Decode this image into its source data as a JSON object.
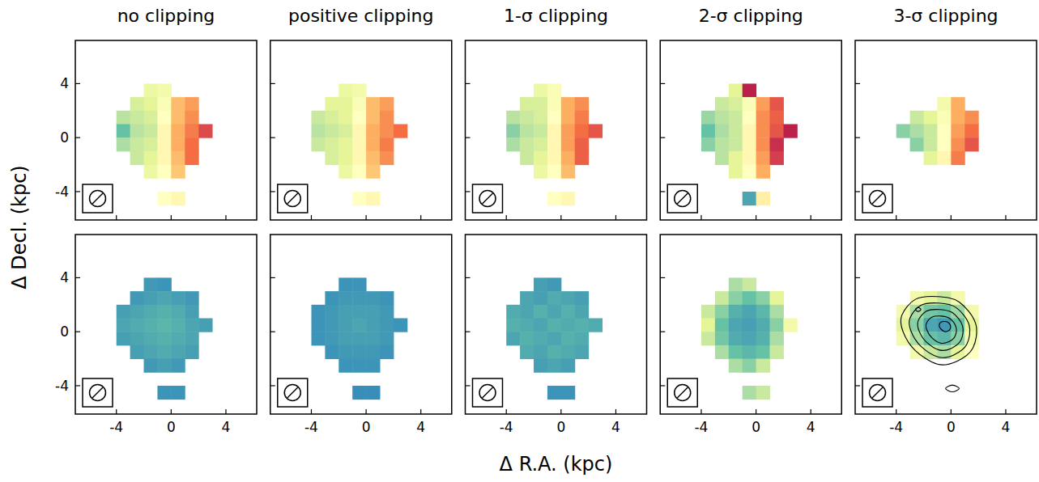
{
  "chart_data": {
    "type": "heatmap",
    "xlabel": "Δ R.A. (kpc)",
    "ylabel": "Δ Decl. (kpc)",
    "columns": [
      "no clipping",
      "positive clipping",
      "1-σ clipping",
      "2-σ clipping",
      "3-σ clipping"
    ],
    "xlim": [
      -7,
      6.25
    ],
    "ylim": [
      -6.1,
      7.2
    ],
    "xticks": [
      -4,
      0,
      4
    ],
    "yticks": [
      -4,
      0,
      4
    ],
    "x": [
      -3.5,
      -2.5,
      -1.5,
      -0.5,
      0.5,
      1.5,
      2.5
    ],
    "y": [
      3.5,
      2.5,
      1.5,
      0.5,
      -0.5,
      -1.5,
      -2.5,
      -3.5,
      -4.5
    ],
    "panels": [
      {
        "color_range": [
          -1,
          1
        ],
        "cells": [
          [
            null,
            null,
            -0.15,
            -0.1,
            null,
            null,
            null
          ],
          [
            null,
            -0.25,
            -0.2,
            -0.05,
            0.35,
            0.45,
            null
          ],
          [
            -0.35,
            -0.3,
            -0.25,
            0.0,
            0.35,
            0.5,
            null
          ],
          [
            -0.6,
            -0.35,
            -0.3,
            0.05,
            0.4,
            0.55,
            0.75
          ],
          [
            -0.4,
            -0.3,
            -0.25,
            0.05,
            0.4,
            0.6,
            null
          ],
          [
            null,
            -0.3,
            -0.2,
            0.05,
            0.35,
            0.6,
            null
          ],
          [
            null,
            null,
            -0.15,
            0.0,
            0.3,
            null,
            null
          ],
          [
            null,
            null,
            null,
            null,
            null,
            null,
            null
          ],
          [
            null,
            null,
            null,
            0.0,
            0.05,
            null,
            null
          ]
        ]
      },
      {
        "color_range": [
          -1,
          1
        ],
        "cells": [
          [
            null,
            null,
            -0.15,
            -0.1,
            null,
            null,
            null
          ],
          [
            null,
            -0.2,
            -0.2,
            -0.05,
            0.35,
            0.45,
            null
          ],
          [
            -0.3,
            -0.25,
            -0.2,
            0.0,
            0.35,
            0.5,
            null
          ],
          [
            -0.35,
            -0.3,
            -0.25,
            0.05,
            0.4,
            0.5,
            0.6
          ],
          [
            -0.3,
            -0.25,
            -0.2,
            0.05,
            0.4,
            0.55,
            null
          ],
          [
            null,
            -0.25,
            -0.2,
            0.05,
            0.35,
            0.5,
            null
          ],
          [
            null,
            null,
            -0.15,
            0.0,
            0.3,
            null,
            null
          ],
          [
            null,
            null,
            null,
            null,
            null,
            null,
            null
          ],
          [
            null,
            null,
            null,
            0.0,
            0.05,
            null,
            null
          ]
        ]
      },
      {
        "color_range": [
          -1,
          1
        ],
        "cells": [
          [
            null,
            null,
            -0.15,
            -0.05,
            null,
            null,
            null
          ],
          [
            null,
            -0.25,
            -0.25,
            -0.05,
            0.4,
            0.5,
            null
          ],
          [
            -0.35,
            -0.3,
            -0.25,
            0.0,
            0.4,
            0.55,
            null
          ],
          [
            -0.5,
            -0.35,
            -0.3,
            0.05,
            0.45,
            0.6,
            0.7
          ],
          [
            -0.4,
            -0.3,
            -0.25,
            0.05,
            0.45,
            0.65,
            null
          ],
          [
            null,
            -0.3,
            -0.2,
            0.05,
            0.4,
            0.65,
            null
          ],
          [
            null,
            null,
            -0.15,
            0.0,
            0.35,
            null,
            null
          ],
          [
            null,
            null,
            null,
            null,
            null,
            null,
            null
          ],
          [
            null,
            null,
            null,
            0.0,
            0.05,
            null,
            null
          ]
        ]
      },
      {
        "color_range": [
          -1,
          1
        ],
        "cells": [
          [
            null,
            null,
            -0.2,
            0.9,
            null,
            null,
            null
          ],
          [
            null,
            -0.3,
            -0.25,
            -0.05,
            0.45,
            0.7,
            null
          ],
          [
            -0.45,
            -0.35,
            -0.3,
            0.0,
            0.5,
            0.65,
            null
          ],
          [
            -0.6,
            -0.4,
            -0.3,
            0.05,
            0.5,
            0.7,
            0.9
          ],
          [
            -0.5,
            -0.35,
            -0.3,
            0.05,
            0.5,
            0.85,
            null
          ],
          [
            null,
            -0.35,
            -0.2,
            0.05,
            0.45,
            0.8,
            null
          ],
          [
            null,
            null,
            -0.2,
            0.0,
            0.4,
            null,
            null
          ],
          [
            null,
            null,
            null,
            null,
            null,
            null,
            null
          ],
          [
            null,
            null,
            null,
            -0.7,
            0.1,
            null,
            null
          ]
        ]
      },
      {
        "color_range": [
          -1,
          1
        ],
        "cells": [
          [
            null,
            null,
            null,
            null,
            null,
            null,
            null
          ],
          [
            null,
            null,
            null,
            -0.1,
            0.4,
            null,
            null
          ],
          [
            null,
            -0.3,
            -0.2,
            -0.05,
            0.4,
            0.5,
            null
          ],
          [
            -0.5,
            -0.4,
            -0.3,
            0.0,
            0.45,
            0.6,
            null
          ],
          [
            null,
            -0.5,
            -0.3,
            0.0,
            0.5,
            0.7,
            null
          ],
          [
            null,
            null,
            -0.2,
            0.05,
            0.55,
            null,
            null
          ],
          [
            null,
            null,
            null,
            null,
            null,
            null,
            null
          ],
          [
            null,
            null,
            null,
            null,
            null,
            null,
            null
          ],
          [
            null,
            null,
            null,
            null,
            null,
            null,
            null
          ]
        ]
      },
      {
        "color_range": [
          0,
          1
        ],
        "cells": [
          [
            null,
            null,
            0.13,
            0.12,
            null,
            null,
            null
          ],
          [
            null,
            0.13,
            0.14,
            0.15,
            0.14,
            0.13,
            null
          ],
          [
            0.14,
            0.15,
            0.16,
            0.17,
            0.16,
            0.14,
            null
          ],
          [
            0.15,
            0.16,
            0.17,
            0.18,
            0.17,
            0.15,
            0.14
          ],
          [
            0.14,
            0.15,
            0.16,
            0.17,
            0.16,
            0.15,
            null
          ],
          [
            null,
            0.14,
            0.15,
            0.16,
            0.15,
            0.14,
            null
          ],
          [
            null,
            null,
            0.13,
            0.14,
            0.13,
            null,
            null
          ],
          [
            null,
            null,
            null,
            null,
            null,
            null,
            null
          ],
          [
            null,
            null,
            null,
            0.12,
            0.12,
            null,
            null
          ]
        ]
      },
      {
        "color_range": [
          0,
          1
        ],
        "cells": [
          [
            null,
            null,
            0.12,
            0.12,
            null,
            null,
            null
          ],
          [
            null,
            0.12,
            0.13,
            0.13,
            0.13,
            0.12,
            null
          ],
          [
            0.12,
            0.13,
            0.14,
            0.14,
            0.14,
            0.13,
            null
          ],
          [
            0.12,
            0.13,
            0.14,
            0.15,
            0.14,
            0.13,
            0.12
          ],
          [
            0.12,
            0.13,
            0.14,
            0.14,
            0.14,
            0.13,
            null
          ],
          [
            null,
            0.12,
            0.13,
            0.13,
            0.13,
            0.12,
            null
          ],
          [
            null,
            null,
            0.12,
            0.12,
            0.12,
            null,
            null
          ],
          [
            null,
            null,
            null,
            null,
            null,
            null,
            null
          ],
          [
            null,
            null,
            null,
            0.11,
            0.11,
            null,
            null
          ]
        ]
      },
      {
        "color_range": [
          0,
          1
        ],
        "cells": [
          [
            null,
            null,
            0.14,
            0.13,
            null,
            null,
            null
          ],
          [
            null,
            0.15,
            0.14,
            0.16,
            0.15,
            0.14,
            null
          ],
          [
            0.16,
            0.15,
            0.17,
            0.15,
            0.17,
            0.15,
            null
          ],
          [
            0.17,
            0.16,
            0.15,
            0.17,
            0.16,
            0.17,
            0.16
          ],
          [
            0.15,
            0.17,
            0.16,
            0.15,
            0.17,
            0.16,
            null
          ],
          [
            null,
            0.16,
            0.15,
            0.17,
            0.16,
            0.15,
            null
          ],
          [
            null,
            null,
            0.14,
            0.15,
            0.14,
            null,
            null
          ],
          [
            null,
            null,
            null,
            null,
            null,
            null,
            null
          ],
          [
            null,
            null,
            null,
            0.12,
            0.12,
            null,
            null
          ]
        ]
      },
      {
        "color_range": [
          0,
          1
        ],
        "cells": [
          [
            null,
            null,
            0.3,
            0.35,
            null,
            null,
            null
          ],
          [
            null,
            0.35,
            0.25,
            0.2,
            0.25,
            0.4,
            null
          ],
          [
            0.35,
            0.25,
            0.17,
            0.15,
            0.18,
            0.3,
            null
          ],
          [
            0.4,
            0.2,
            0.15,
            0.14,
            0.16,
            0.25,
            0.45
          ],
          [
            0.35,
            0.22,
            0.16,
            0.15,
            0.17,
            0.3,
            null
          ],
          [
            null,
            0.3,
            0.2,
            0.18,
            0.2,
            0.35,
            null
          ],
          [
            null,
            null,
            0.3,
            0.25,
            0.35,
            null,
            null
          ],
          [
            null,
            null,
            null,
            null,
            null,
            null,
            null
          ],
          [
            null,
            null,
            null,
            0.3,
            0.35,
            null,
            null
          ]
        ]
      },
      {
        "color_range": [
          0,
          1
        ],
        "cells": [
          [
            null,
            null,
            null,
            null,
            null,
            null,
            null
          ],
          [
            null,
            0.45,
            0.4,
            0.35,
            0.45,
            null,
            null
          ],
          [
            0.45,
            0.3,
            0.22,
            0.2,
            0.28,
            0.45,
            null
          ],
          [
            0.4,
            0.25,
            0.15,
            0.13,
            0.2,
            0.4,
            null
          ],
          [
            0.45,
            0.3,
            0.2,
            0.18,
            0.25,
            0.45,
            null
          ],
          [
            null,
            0.45,
            0.35,
            0.3,
            0.4,
            0.5,
            null
          ],
          [
            null,
            null,
            null,
            null,
            null,
            null,
            null
          ],
          [
            null,
            null,
            null,
            null,
            null,
            null,
            null
          ],
          [
            null,
            null,
            null,
            null,
            null,
            null,
            null
          ]
        ],
        "contours": [
          {
            "x": [
              -3.6,
              -2.6,
              -1.0,
              0.6,
              1.8,
              1.6,
              0.4,
              -1.0,
              -2.6,
              -3.5
            ],
            "y": [
              1.2,
              2.4,
              2.6,
              2.2,
              0.6,
              -1.2,
              -2.2,
              -2.4,
              -1.4,
              0.0
            ]
          },
          {
            "x": [
              -3.0,
              -2.2,
              -0.92,
              0.36,
              1.32,
              1.16,
              0.2,
              -0.92,
              -2.2,
              -2.92
            ],
            "y": [
              1.0,
              1.96,
              2.12,
              1.8,
              0.52,
              -0.92,
              -1.72,
              -1.88,
              -1.08,
              0.04
            ]
          },
          {
            "x": [
              -2.4,
              -1.8,
              -0.84,
              0.12,
              0.84,
              0.72,
              0.0,
              -0.84,
              -1.8,
              -2.34
            ],
            "y": [
              0.8,
              1.52,
              1.64,
              1.4,
              0.44,
              -0.64,
              -1.24,
              -1.36,
              -0.76,
              0.08
            ]
          },
          {
            "x": [
              -1.8,
              -1.4,
              -0.76,
              -0.12,
              0.36,
              0.28,
              -0.2,
              -0.76,
              -1.4,
              -1.76
            ],
            "y": [
              0.6,
              1.08,
              1.16,
              1.0,
              0.36,
              -0.36,
              -0.76,
              -0.84,
              -0.44,
              0.12
            ]
          },
          {
            "x": [
              -0.85,
              -0.7,
              -0.46,
              -0.22,
              -0.04,
              -0.07,
              -0.25,
              -0.46,
              -0.7,
              -0.84
            ],
            "y": [
              0.55,
              0.73,
              0.76,
              0.7,
              0.46,
              0.19,
              0.04,
              0.01,
              0.16,
              0.37
            ]
          },
          {
            "x": [
              -2.6,
              -2.4,
              -2.2,
              -2.4
            ],
            "y": [
              1.65,
              1.8,
              1.65,
              1.5
            ]
          },
          {
            "x": [
              -0.4,
              0.1,
              0.6,
              0.1
            ],
            "y": [
              -4.2,
              -3.95,
              -4.2,
              -4.45
            ]
          }
        ]
      }
    ]
  }
}
